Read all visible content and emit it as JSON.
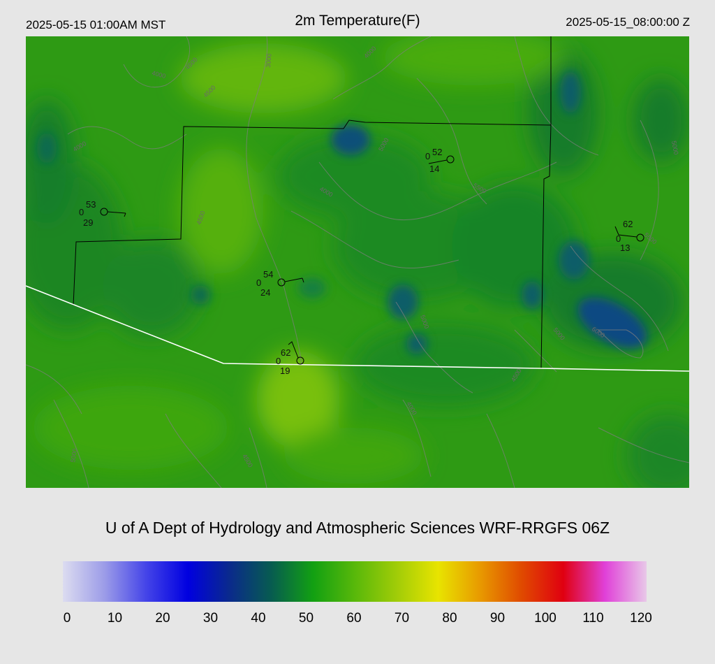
{
  "header": {
    "local_time": "2025-05-15 01:00AM MST",
    "title": "2m Temperature(F)",
    "utc_time": "2025-05-15_08:00:00 Z"
  },
  "map": {
    "contour_labels": [
      "4000",
      "4000",
      "4000",
      "4500",
      "4500",
      "5000",
      "5000",
      "5000",
      "5500",
      "5500",
      "6000",
      "3000",
      "4000",
      "4500",
      "5000",
      "4000",
      "4500",
      "5000",
      "4500"
    ],
    "stations": [
      {
        "temp": "53",
        "dewpoint": "29",
        "cloud": "0"
      },
      {
        "temp": "52",
        "dewpoint": "14",
        "cloud": "0"
      },
      {
        "temp": "62",
        "dewpoint": "13",
        "cloud": "0"
      },
      {
        "temp": "54",
        "dewpoint": "24",
        "cloud": "0"
      },
      {
        "temp": "62",
        "dewpoint": "19",
        "cloud": "0"
      }
    ],
    "colors": {
      "base_green": "#2e9a14",
      "dark_green": "#137e2a",
      "blue_green": "#0d5d68",
      "yellow_green": "#6cbc0c",
      "border_white": "#ffffff",
      "boundary_black": "#000000",
      "contour_gray": "#7f7f7f"
    }
  },
  "footer": {
    "credit": "U of A Dept of Hydrology and Atmospheric Sciences WRF-RRGFS 06Z"
  },
  "colorbar": {
    "ticks": [
      "0",
      "10",
      "20",
      "30",
      "40",
      "50",
      "60",
      "70",
      "80",
      "90",
      "100",
      "110",
      "120"
    ],
    "colors": [
      "#dcdcf0",
      "#9c9ce8",
      "#4444e8",
      "#0000e0",
      "#0a2a8c",
      "#075c50",
      "#12a012",
      "#58b80a",
      "#a0cc08",
      "#e8e400",
      "#e89a00",
      "#e04a00",
      "#e00010",
      "#e040d8",
      "#e8c8e8"
    ]
  }
}
